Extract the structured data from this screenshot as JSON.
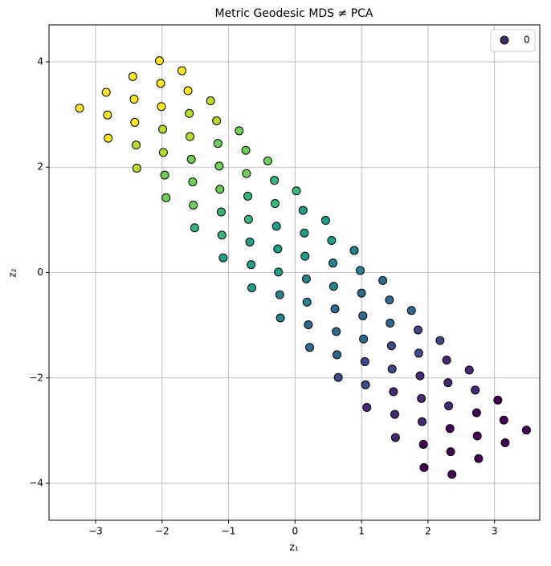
{
  "chart_data": {
    "type": "scatter",
    "title": "Metric Geodesic MDS ≠ PCA",
    "xlabel": "z₁",
    "ylabel": "z₂",
    "xlim": [
      -3.7,
      3.68
    ],
    "ylim": [
      -4.7,
      4.7
    ],
    "xticks": [
      {
        "value": -3,
        "label": "−3"
      },
      {
        "value": -2,
        "label": "−2"
      },
      {
        "value": -1,
        "label": "−1"
      },
      0,
      1,
      2,
      3
    ],
    "yticks": [
      {
        "value": -4,
        "label": "−4"
      },
      {
        "value": -2,
        "label": "−2"
      },
      0,
      2,
      4
    ],
    "grid": true,
    "legend": "upper right",
    "series": [
      {
        "name": "0",
        "color": "#3b2a63",
        "x": [
          -3.24,
          -2.84,
          -2.44,
          -2.04,
          -2.82,
          -2.42,
          -2.02,
          -1.7,
          -2.81,
          -2.41,
          -2.01,
          -1.61,
          -2.39,
          -1.99,
          -1.59,
          -1.27,
          -2.38,
          -1.98,
          -1.58,
          -1.18,
          -1.96,
          -1.56,
          -1.16,
          -0.84,
          -1.94,
          -1.54,
          -1.14,
          -0.74,
          -1.53,
          -1.13,
          -0.73,
          -0.41,
          -1.51,
          -1.11,
          -0.71,
          -0.31,
          -1.1,
          -0.7,
          -0.3,
          0.02,
          -1.08,
          -0.68,
          -0.28,
          0.12,
          -0.66,
          -0.26,
          0.14,
          0.46,
          -0.65,
          -0.25,
          0.15,
          0.55,
          -0.23,
          0.17,
          0.57,
          0.89,
          -0.22,
          0.18,
          0.58,
          0.98,
          0.2,
          0.6,
          1.0,
          1.32,
          0.22,
          0.62,
          1.02,
          1.42,
          0.63,
          1.03,
          1.43,
          1.75,
          0.65,
          1.05,
          1.45,
          1.85,
          1.06,
          1.46,
          1.86,
          2.18,
          1.08,
          1.48,
          1.88,
          2.28,
          1.5,
          1.9,
          2.3,
          2.62,
          1.51,
          1.91,
          2.31,
          2.71,
          1.93,
          2.33,
          2.73,
          3.05,
          1.94,
          2.34,
          2.74,
          3.14,
          2.36,
          2.76,
          3.16,
          3.48
        ],
        "values": [
          3.12,
          3.42,
          3.72,
          4.02,
          2.99,
          3.29,
          3.59,
          3.83,
          2.55,
          2.85,
          3.15,
          3.45,
          2.42,
          2.72,
          3.02,
          3.26,
          1.98,
          2.28,
          2.58,
          2.88,
          1.85,
          2.15,
          2.45,
          2.69,
          1.42,
          1.72,
          2.02,
          2.32,
          1.28,
          1.58,
          1.88,
          2.12,
          0.85,
          1.15,
          1.45,
          1.75,
          0.71,
          1.01,
          1.31,
          1.55,
          0.28,
          0.58,
          0.88,
          1.18,
          0.15,
          0.45,
          0.75,
          0.99,
          -0.29,
          0.01,
          0.31,
          0.61,
          -0.42,
          -0.12,
          0.18,
          0.42,
          -0.86,
          -0.56,
          -0.26,
          0.04,
          -0.99,
          -0.69,
          -0.39,
          -0.15,
          -1.42,
          -1.12,
          -0.82,
          -0.52,
          -1.56,
          -1.26,
          -0.96,
          -0.72,
          -1.99,
          -1.69,
          -1.39,
          -1.09,
          -2.13,
          -1.83,
          -1.53,
          -1.29,
          -2.56,
          -2.26,
          -1.96,
          -1.66,
          -2.69,
          -2.39,
          -2.09,
          -1.85,
          -3.13,
          -2.83,
          -2.53,
          -2.23,
          -3.26,
          -2.96,
          -2.66,
          -2.42,
          -3.7,
          -3.4,
          -3.1,
          -2.8,
          -3.83,
          -3.53,
          -3.23,
          -2.99
        ],
        "colors": [
          "#fde725",
          "#fde725",
          "#fde725",
          "#fde725",
          "#fde725",
          "#fde725",
          "#fde725",
          "#fde725",
          "#fde725",
          "#fde725",
          "#fde725",
          "#fde725",
          "#b5de2b",
          "#b5de2b",
          "#b5de2b",
          "#b5de2b",
          "#b5de2b",
          "#b5de2b",
          "#b5de2b",
          "#b5de2b",
          "#6ece58",
          "#6ece58",
          "#6ece58",
          "#6ece58",
          "#6ece58",
          "#6ece58",
          "#6ece58",
          "#6ece58",
          "#6ece58",
          "#6ece58",
          "#6ece58",
          "#6ece58",
          "#35b779",
          "#35b779",
          "#35b779",
          "#35b779",
          "#35b779",
          "#35b779",
          "#35b779",
          "#35b779",
          "#1f9e89",
          "#1f9e89",
          "#1f9e89",
          "#1f9e89",
          "#1f9e89",
          "#1f9e89",
          "#1f9e89",
          "#1f9e89",
          "#1f9e89",
          "#1f9e89",
          "#1f9e89",
          "#1f9e89",
          "#26828e",
          "#26828e",
          "#26828e",
          "#26828e",
          "#26828e",
          "#26828e",
          "#26828e",
          "#26828e",
          "#31688e",
          "#31688e",
          "#31688e",
          "#31688e",
          "#31688e",
          "#31688e",
          "#31688e",
          "#31688e",
          "#31688e",
          "#31688e",
          "#31688e",
          "#31688e",
          "#3e4989",
          "#3e4989",
          "#3e4989",
          "#3e4989",
          "#3e4989",
          "#3e4989",
          "#3e4989",
          "#3e4989",
          "#482878",
          "#482878",
          "#482878",
          "#482878",
          "#482878",
          "#482878",
          "#482878",
          "#482878",
          "#482878",
          "#482878",
          "#482878",
          "#482878",
          "#440154",
          "#440154",
          "#440154",
          "#440154",
          "#440154",
          "#440154",
          "#440154",
          "#440154",
          "#440154",
          "#440154",
          "#440154",
          "#440154"
        ]
      }
    ]
  }
}
